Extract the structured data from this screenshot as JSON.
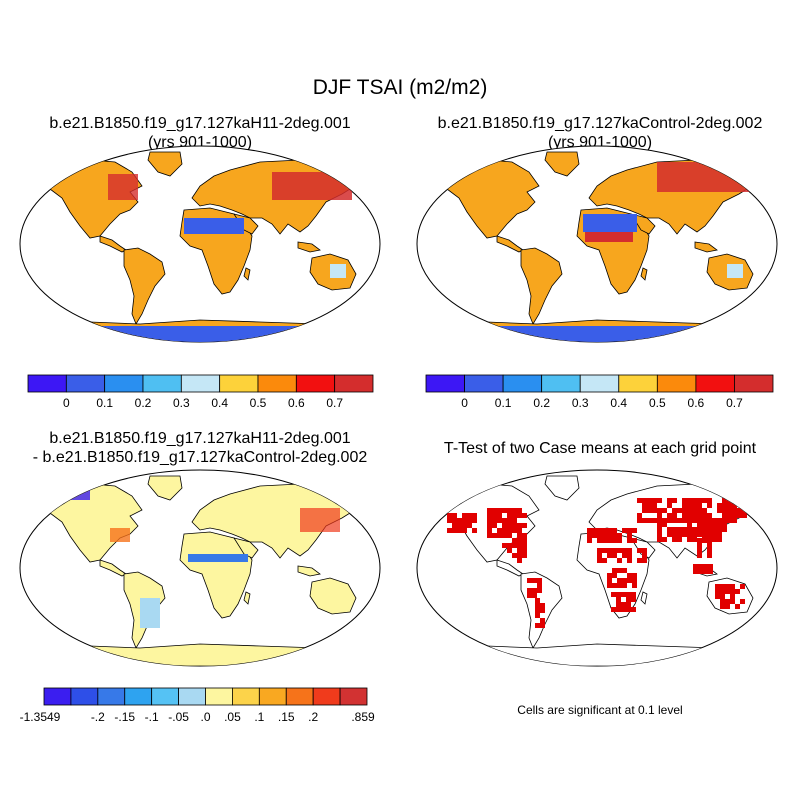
{
  "main_title": "DJF TSAI (m2/m2)",
  "panels": [
    {
      "title_line1": "b.e21.B1850.f19_g17.127kaH11-2deg.001",
      "title_line2": "(yrs 901-1000)"
    },
    {
      "title_line1": "b.e21.B1850.f19_g17.127kaControl-2deg.002",
      "title_line2": "(yrs 901-1000)"
    },
    {
      "title_line1": "b.e21.B1850.f19_g17.127kaH11-2deg.001",
      "title_line2": "- b.e21.B1850.f19_g17.127kaControl-2deg.002"
    },
    {
      "title_line1": "T-Test of two Case means at each grid point",
      "title_line2": ""
    }
  ],
  "colorbar_abs": {
    "colors": [
      "#3d17f5",
      "#3a5ee8",
      "#2a8ff0",
      "#4fbff2",
      "#c5e7f6",
      "#fdd23a",
      "#fb8a0c",
      "#f21010",
      "#d42d2d"
    ],
    "labels": [
      "0",
      "0.1",
      "0.2",
      "0.3",
      "0.4",
      "0.5",
      "0.6",
      "0.7"
    ]
  },
  "colorbar_diff": {
    "colors": [
      "#3b1ef0",
      "#2e4fe8",
      "#3779e8",
      "#2ea3f0",
      "#55c2f4",
      "#a9d9f2",
      "#fdf6a0",
      "#fcd34a",
      "#f9a821",
      "#f6731a",
      "#f03b1c",
      "#d23232"
    ],
    "labels": [
      "-1.3549",
      "-.2",
      "-.15",
      "-.1",
      "-.05",
      ".0",
      ".05",
      ".1",
      ".15",
      ".2",
      ".859"
    ]
  },
  "significance_note": "Cells are significant at 0.1 level",
  "significance_color": "#e10000"
}
